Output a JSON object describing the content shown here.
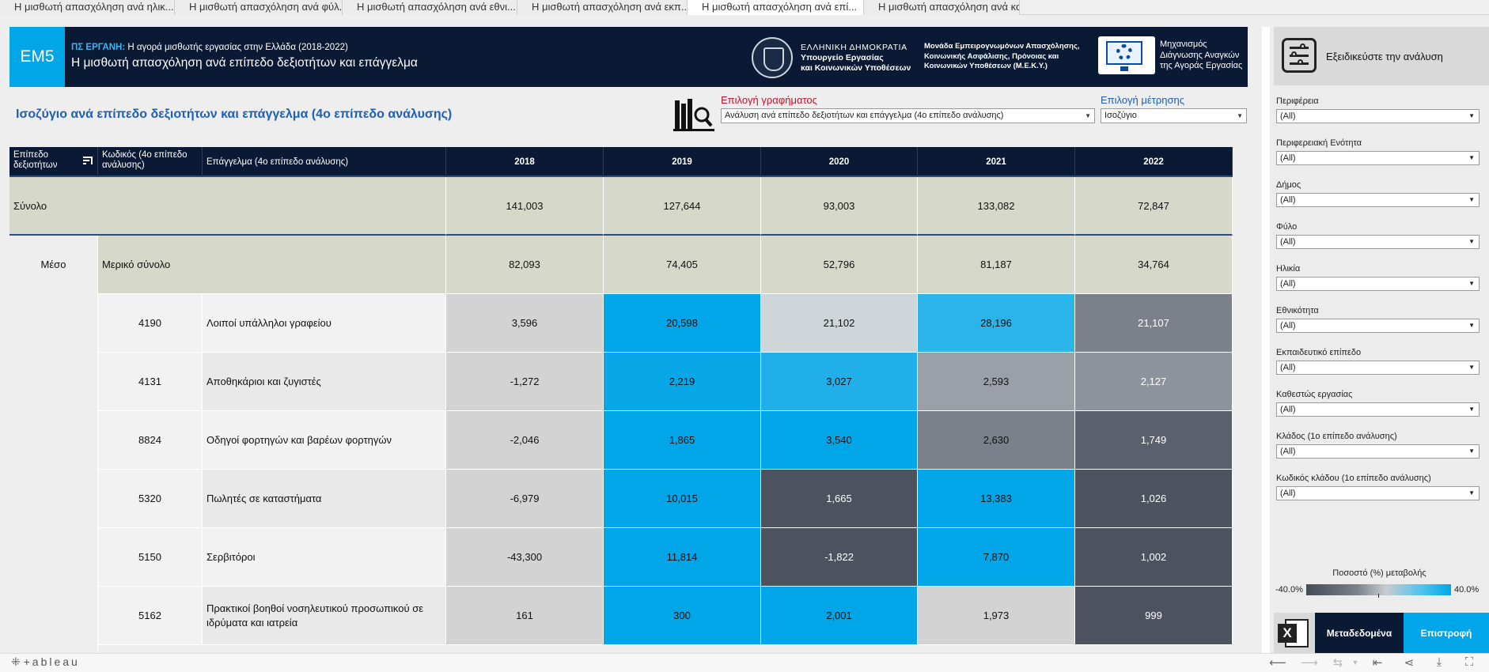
{
  "tabs": [
    {
      "label": "Η μισθωτή απασχόληση ανά ηλικ...",
      "active": false
    },
    {
      "label": "Η μισθωτή απασχόληση ανά φύλ...",
      "active": false
    },
    {
      "label": "Η μισθωτή απασχόληση ανά εθνι...",
      "active": false
    },
    {
      "label": "Η μισθωτή απασχόληση ανά εκπ...",
      "active": false
    },
    {
      "label": "Η μισθωτή απασχόληση ανά επί...",
      "active": true
    },
    {
      "label": "Η μισθωτή απασχόληση ανά καθ...",
      "active": false
    }
  ],
  "header": {
    "code": "EM5",
    "subtitle_prefix": "ΠΣ ΕΡΓΑΝΗ:",
    "subtitle": " Η αγορά μισθωτής εργασίας στην Ελλάδα (2018-2022)",
    "title": "Η μισθωτή απασχόληση ανά επίπεδο δεξιοτήτων και επάγγελμα",
    "gov_line1": "ΕΛΛΗΝΙΚΗ ΔΗΜΟΚΡΑΤΙΑ",
    "gov_line2": "Υπουργείο Εργασίας",
    "gov_line3": "και Κοινωνικών Υποθέσεων",
    "unit_line1": "Μονάδα Εμπειρογνωμόνων Απασχόλησης,",
    "unit_line2": "Κοινωνικής Ασφάλισης, Πρόνοιας και",
    "unit_line3": "Κοινωνικών Υποθέσεων (Μ.Ε.Κ.Υ.)",
    "mech_line1": "Μηχανισμός",
    "mech_line2": "Διάγνωσης Αναγκών",
    "mech_line3": "της Αγοράς Εργασίας"
  },
  "section": {
    "title": "Ισοζύγιο ανά επίπεδο δεξιοτήτων και επάγγελμα (4ο επίπεδο ανάλυσης)",
    "chart_label": "Επιλογή γραφήματος",
    "chart_value": "Ανάλυση ανά επίπεδο δεξιοτήτων και επάγγελμα (4ο επίπεδο ανάλυσης)",
    "measure_label": "Επιλογή μέτρησης",
    "measure_value": "Ισοζύγιο"
  },
  "table": {
    "col_skill": "Επίπεδο δεξιοτήτων",
    "col_code": "Κωδικός (4ο επίπεδο ανάλυσης)",
    "col_occ": "Επάγγελμα (4ο επίπεδο ανάλυσης)",
    "years": [
      "2018",
      "2019",
      "2020",
      "2021",
      "2022"
    ],
    "total_label": "Σύνολο",
    "total_values": [
      "141,003",
      "127,644",
      "93,003",
      "133,082",
      "72,847"
    ],
    "skill_level": "Μέσο",
    "subtotal_label": "Μερικό σύνολο",
    "subtotal_values": [
      "82,093",
      "74,405",
      "52,796",
      "81,187",
      "34,764"
    ],
    "rows": [
      {
        "code": "4190",
        "occupation": "Λοιποί υπάλληλοι γραφείου",
        "values": [
          "3,596",
          "20,598",
          "21,102",
          "28,196",
          "21,107"
        ],
        "colors": [
          "#d3d3d3",
          "#00a6e8",
          "#cfd6da",
          "#29b4ea",
          "#7b808a"
        ],
        "light": [
          false,
          false,
          false,
          false,
          true
        ]
      },
      {
        "code": "4131",
        "occupation": "Αποθηκάριοι και ζυγιστές",
        "values": [
          "-1,272",
          "2,219",
          "3,027",
          "2,593",
          "2,127"
        ],
        "colors": [
          "#d3d3d3",
          "#08a8e8",
          "#21afea",
          "#9ba0a8",
          "#8d939c"
        ],
        "light": [
          false,
          false,
          false,
          false,
          true
        ]
      },
      {
        "code": "8824",
        "occupation": "Οδηγοί φορτηγών και βαρέων φορτηγών",
        "values": [
          "-2,046",
          "1,865",
          "3,540",
          "2,630",
          "1,749"
        ],
        "colors": [
          "#d3d3d3",
          "#00a6e8",
          "#00a6e8",
          "#7b808a",
          "#5b616c"
        ],
        "light": [
          false,
          false,
          false,
          false,
          true
        ]
      },
      {
        "code": "5320",
        "occupation": "Πωλητές σε καταστήματα",
        "values": [
          "-6,979",
          "10,015",
          "1,665",
          "13,383",
          "1,026"
        ],
        "colors": [
          "#d3d3d3",
          "#00a6e8",
          "#4c525e",
          "#00a6e8",
          "#4c525e"
        ],
        "light": [
          false,
          false,
          true,
          false,
          true
        ]
      },
      {
        "code": "5150",
        "occupation": "Σερβιτόροι",
        "values": [
          "-43,300",
          "11,814",
          "-1,822",
          "7,870",
          "1,002"
        ],
        "colors": [
          "#d3d3d3",
          "#00a6e8",
          "#4c525e",
          "#00a6e8",
          "#4c525e"
        ],
        "light": [
          false,
          false,
          true,
          false,
          true
        ]
      },
      {
        "code": "5162",
        "occupation": "Πρακτικοί βοηθοί νοσηλευτικού προσωπικού σε ιδρύματα και ιατρεία",
        "values": [
          "161",
          "300",
          "2,001",
          "1,973",
          "999"
        ],
        "colors": [
          "#d3d3d3",
          "#00a6e8",
          "#00a6e8",
          "#d3d3d3",
          "#4c525e"
        ],
        "light": [
          false,
          false,
          false,
          false,
          true
        ]
      }
    ]
  },
  "panel": {
    "title": "Εξειδικεύστε την ανάλυση",
    "filters": [
      {
        "label": "Περιφέρεια",
        "value": "(All)"
      },
      {
        "label": "Περιφερειακή Ενότητα",
        "value": "(All)"
      },
      {
        "label": "Δήμος",
        "value": "(All)"
      },
      {
        "label": "Φύλο",
        "value": "(All)"
      },
      {
        "label": "Ηλικία",
        "value": "(All)"
      },
      {
        "label": "Εθνικότητα",
        "value": "(All)"
      },
      {
        "label": "Εκπαιδευτικό επίπεδο",
        "value": "(All)"
      },
      {
        "label": "Καθεστώς εργασίας",
        "value": "(All)"
      },
      {
        "label": "Κλάδος (1ο επίπεδο ανάλυσης)",
        "value": "(All)"
      },
      {
        "label": "Κωδικός κλάδου (1ο επίπεδο ανάλυσης)",
        "value": "(All)"
      }
    ],
    "legend_title": "Ποσοστό (%) μεταβολής",
    "legend_min": "-40.0%",
    "legend_max": "40.0%",
    "btn_meta": "Μεταδεδομένα",
    "btn_back": "Επιστροφή"
  },
  "toolbar": {
    "logo": "+ableau"
  }
}
